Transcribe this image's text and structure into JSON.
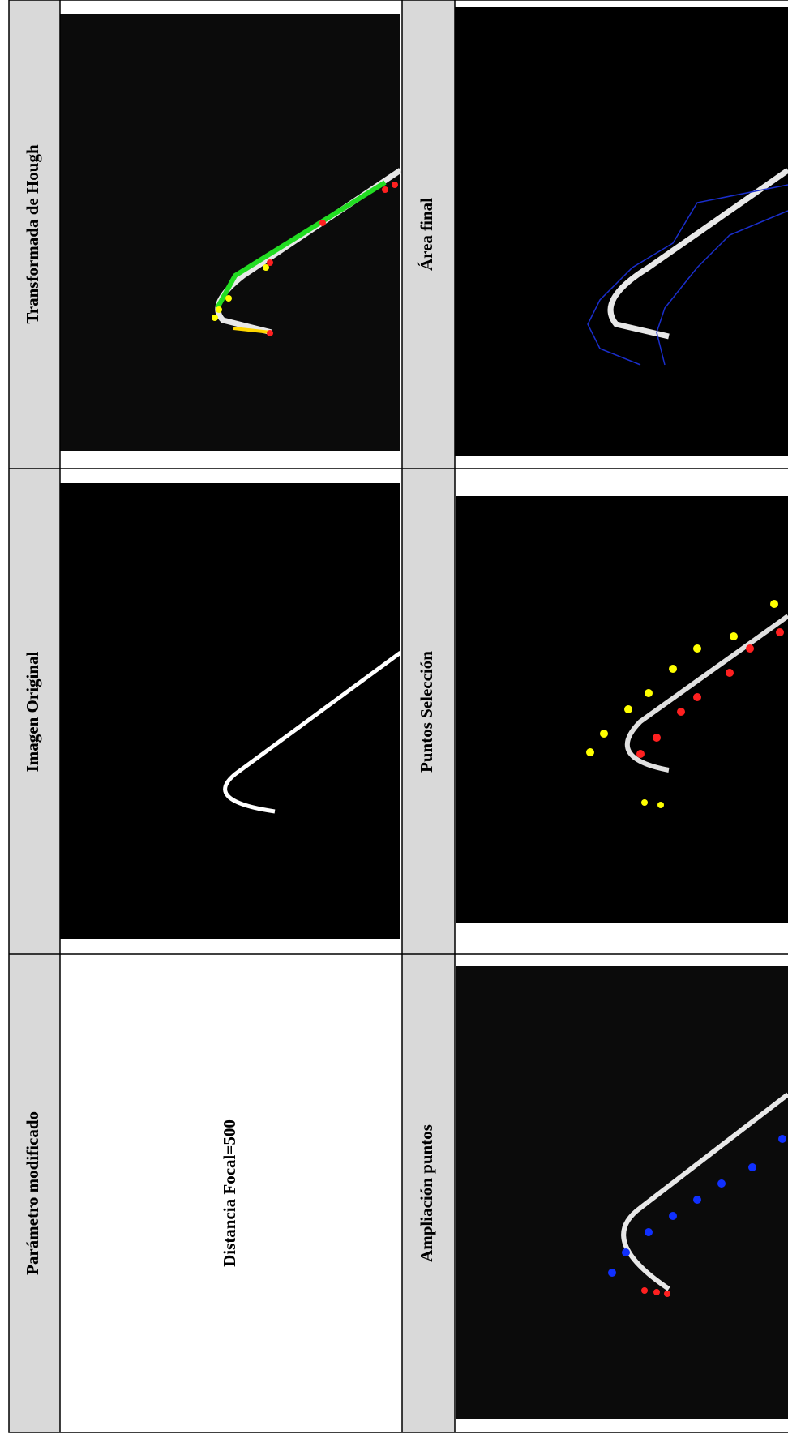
{
  "table": {
    "rows": [
      {
        "left_header": "Transformada de Hough",
        "right_header": "Área final"
      },
      {
        "left_header": "Imagen Original",
        "right_header": "Puntos Selección"
      },
      {
        "left_header": "Parámetro modificado",
        "parameter": "Distancia Focal=500",
        "right_header": "Ampliación puntos"
      }
    ]
  }
}
